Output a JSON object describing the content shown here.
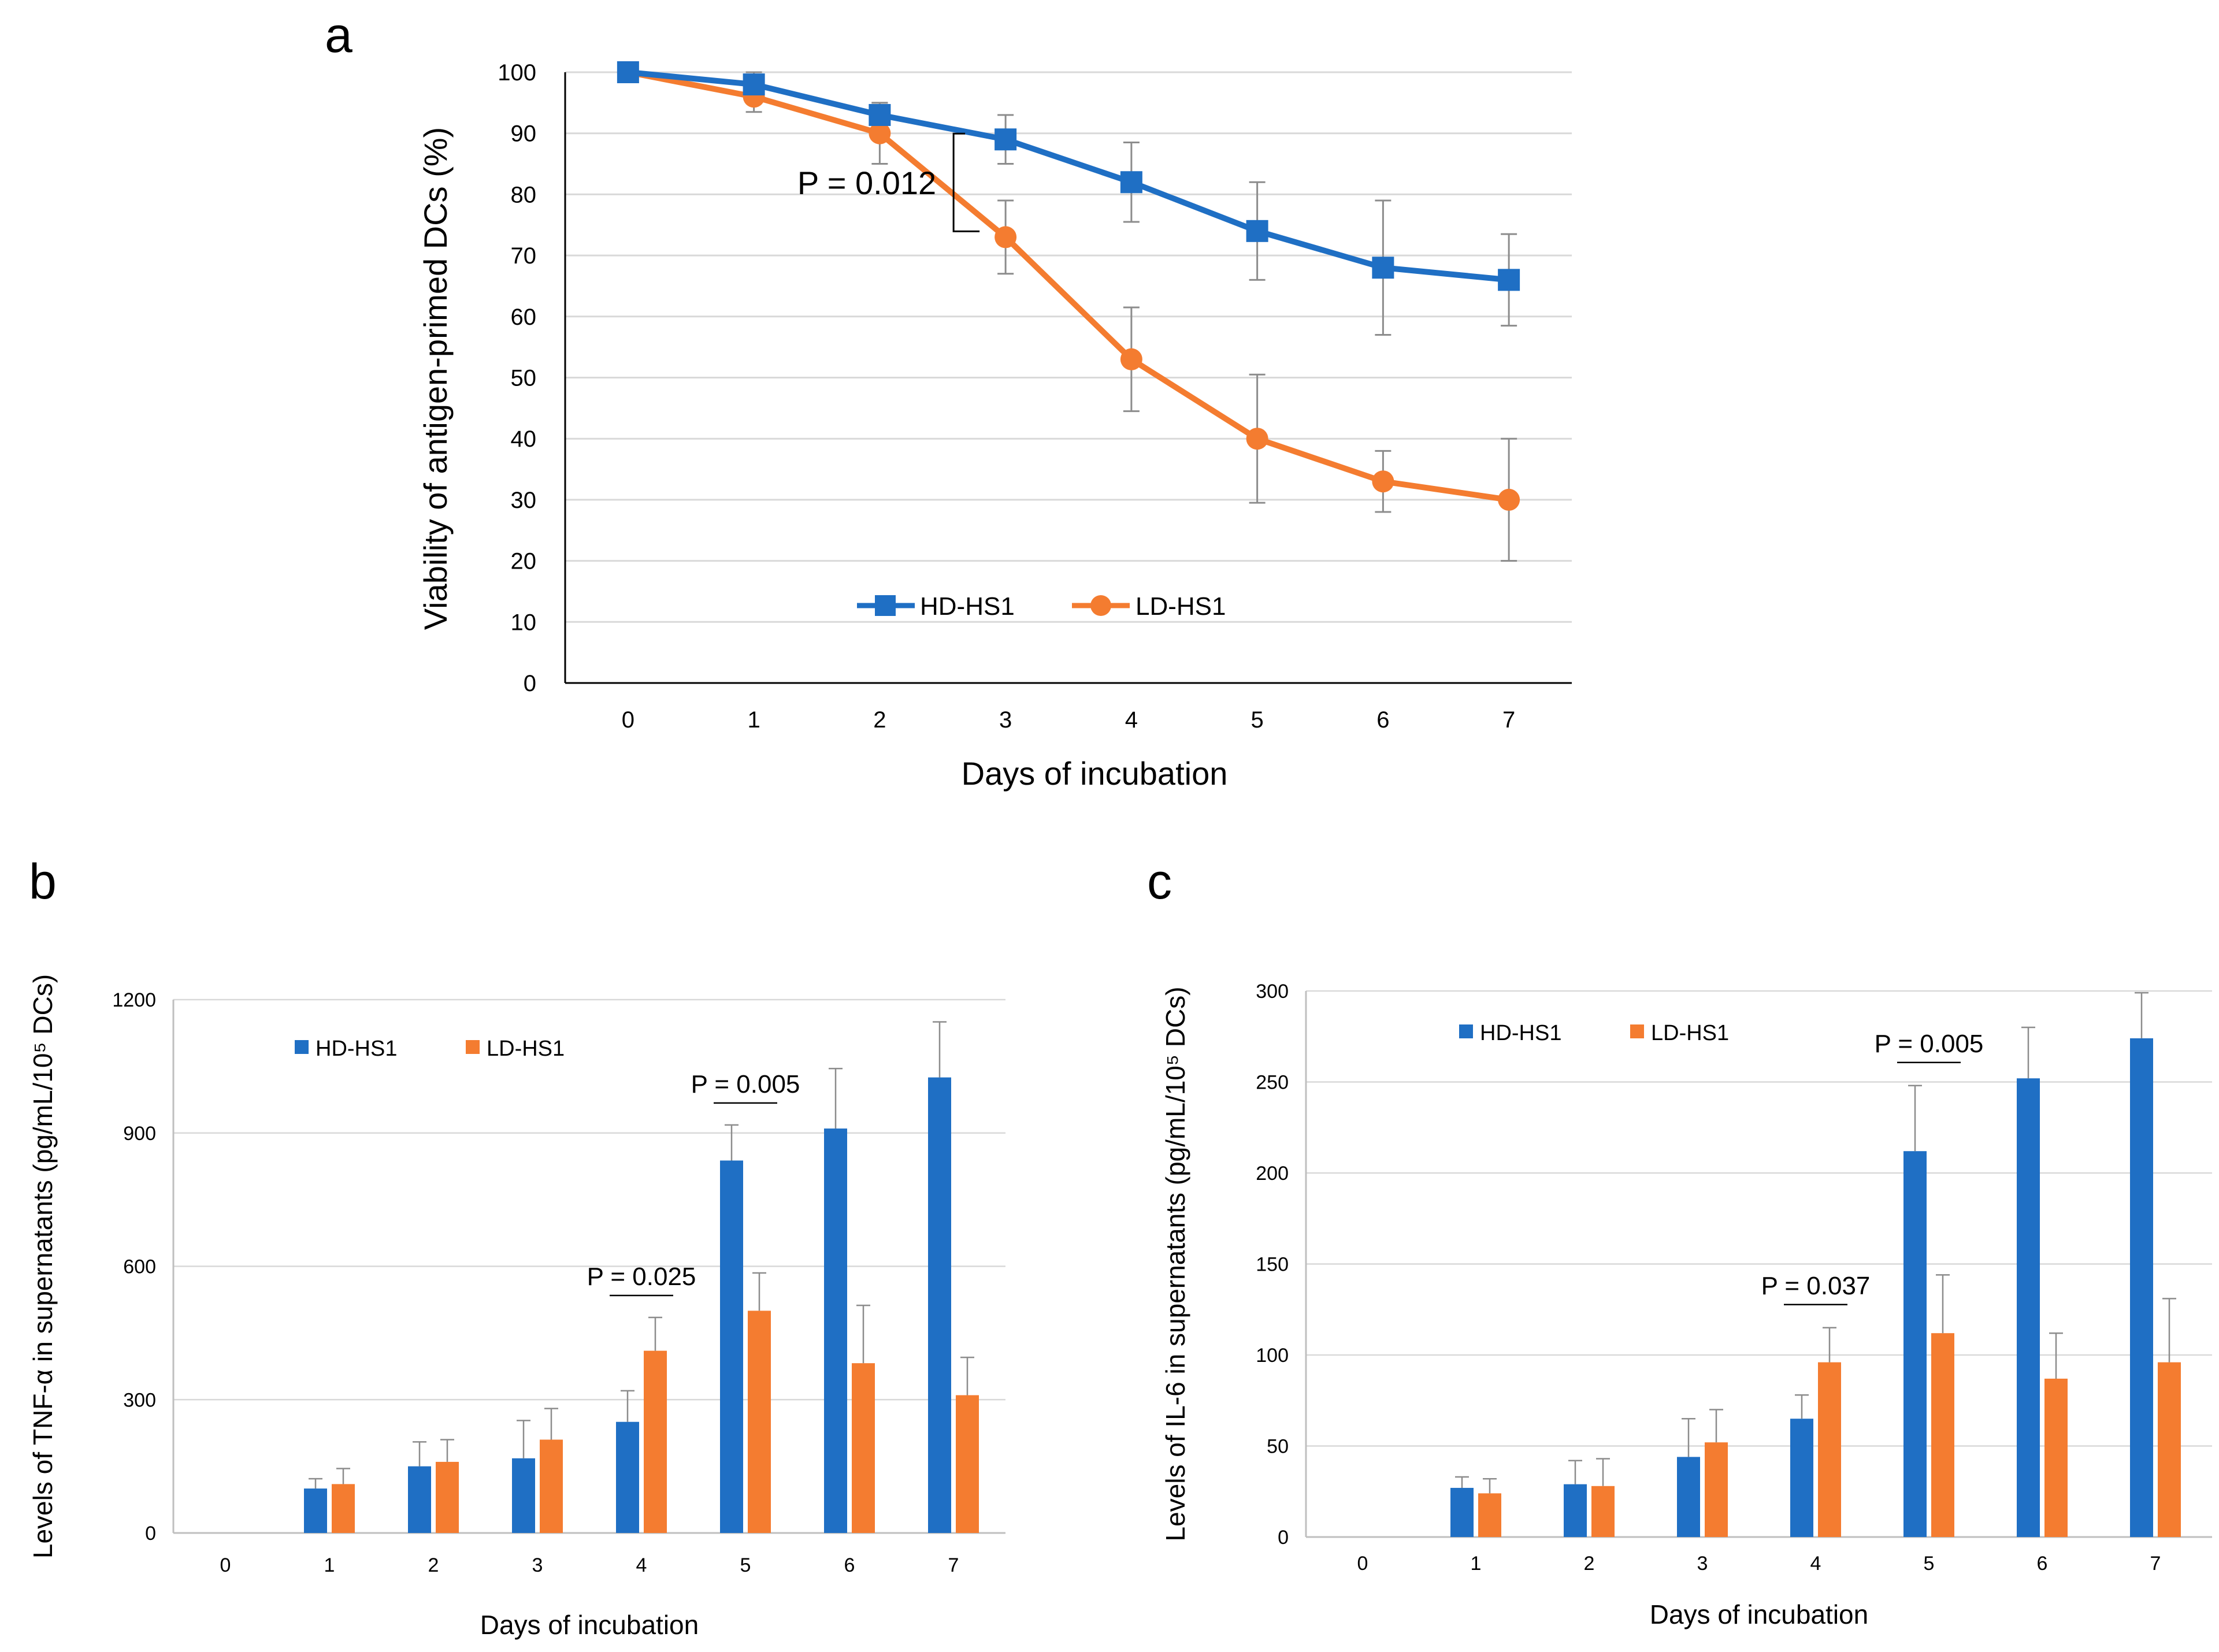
{
  "chart_data": [
    {
      "panel": "a",
      "type": "line",
      "xlabel": "Days of incubation",
      "ylabel": "Viability of antigen-primed DCs (%)",
      "ylim": [
        0,
        100
      ],
      "yticks": [
        0,
        10,
        20,
        30,
        40,
        50,
        60,
        70,
        80,
        90,
        100
      ],
      "x": [
        0,
        1,
        2,
        3,
        4,
        5,
        6,
        7
      ],
      "series": [
        {
          "name": "HD-HS1",
          "color": "#1f6fc4",
          "marker": "square",
          "values": [
            100,
            98,
            93,
            89,
            82,
            74,
            68,
            66
          ],
          "errors": [
            0,
            2,
            2,
            4,
            6.5,
            8,
            11,
            7.5
          ]
        },
        {
          "name": "LD-HS1",
          "color": "#f47c30",
          "marker": "circle",
          "values": [
            100,
            96,
            90,
            73,
            53,
            40,
            33,
            30
          ],
          "errors": [
            0,
            2.5,
            5,
            6,
            8.5,
            10.5,
            5,
            10
          ]
        }
      ],
      "annotations": [
        {
          "text": "P = 0.012",
          "x": 3
        }
      ],
      "legend": "bottom-center"
    },
    {
      "panel": "b",
      "type": "bar",
      "xlabel": "Days of incubation",
      "ylabel": "Levels of TNF-α in supernatants (pg/mL/10⁵ DCs)",
      "ylim": [
        0,
        1200
      ],
      "yticks": [
        0,
        300,
        600,
        900,
        1200
      ],
      "categories": [
        "0",
        "1",
        "2",
        "3",
        "4",
        "5",
        "6",
        "7"
      ],
      "series": [
        {
          "name": "HD-HS1",
          "color": "#1f6fc4",
          "values": [
            0,
            100,
            150,
            168,
            250,
            838,
            910,
            1025
          ],
          "errors": [
            0,
            22,
            55,
            85,
            70,
            80,
            135,
            125
          ]
        },
        {
          "name": "LD-HS1",
          "color": "#f47c30",
          "values": [
            0,
            110,
            160,
            210,
            410,
            500,
            382,
            310
          ],
          "errors": [
            0,
            35,
            50,
            70,
            75,
            85,
            130,
            85
          ]
        }
      ],
      "annotations": [
        {
          "text": "P = 0.025",
          "x": 4
        },
        {
          "text": "P = 0.005",
          "x": 5
        }
      ],
      "legend": "top-left"
    },
    {
      "panel": "c",
      "type": "bar",
      "xlabel": "Days of incubation",
      "ylabel": "Levels of IL-6 in supernatants (pg/mL/10⁵ DCs)",
      "ylim": [
        0,
        300
      ],
      "yticks": [
        0,
        50,
        100,
        150,
        200,
        250,
        300
      ],
      "categories": [
        "0",
        "1",
        "2",
        "3",
        "4",
        "5",
        "6",
        "7"
      ],
      "series": [
        {
          "name": "HD-HS1",
          "color": "#1f6fc4",
          "values": [
            0,
            27,
            29,
            44,
            65,
            212,
            252,
            274
          ],
          "errors": [
            0,
            6,
            13,
            21,
            13,
            36,
            28,
            25
          ]
        },
        {
          "name": "LD-HS1",
          "color": "#f47c30",
          "values": [
            0,
            24,
            28,
            52,
            96,
            112,
            87,
            96
          ],
          "errors": [
            0,
            8,
            15,
            18,
            19,
            32,
            25,
            35
          ]
        }
      ],
      "annotations": [
        {
          "text": "P = 0.037",
          "x": 4
        },
        {
          "text": "P = 0.005",
          "x": 5
        }
      ],
      "legend": "top-left"
    }
  ],
  "panel_labels": {
    "a": "a",
    "b": "b",
    "c": "c"
  }
}
